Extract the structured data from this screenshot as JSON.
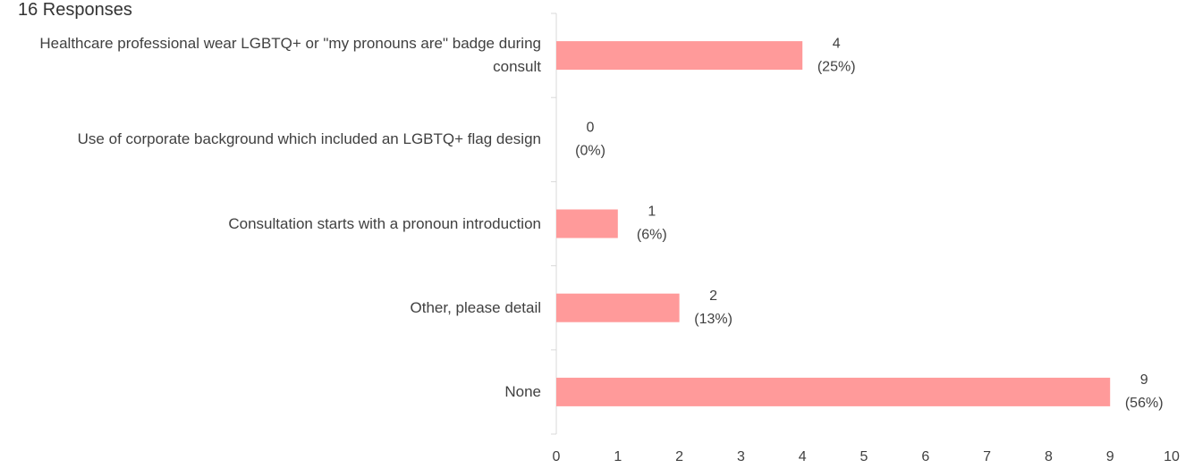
{
  "chart_data": {
    "type": "hbar",
    "subtitle": "16 Responses",
    "categories": [
      "Healthcare professional wear LGBTQ+ or \"my pronouns are\" badge during consult",
      "Use of corporate background which included an LGBTQ+ flag design",
      "Consultation starts with a pronoun introduction",
      "Other, please detail",
      "None"
    ],
    "values": [
      4,
      0,
      1,
      2,
      9
    ],
    "value_labels": [
      [
        "4",
        "(25%)"
      ],
      [
        "0",
        "(0%)"
      ],
      [
        "1",
        "(6%)"
      ],
      [
        "2",
        "(13%)"
      ],
      [
        "9",
        "(56%)"
      ]
    ],
    "color": "#ff9a9a",
    "xlim": [
      0,
      10
    ],
    "xticks": [
      0,
      1,
      2,
      3,
      4,
      5,
      6,
      7,
      8,
      9,
      10
    ],
    "grid": false
  }
}
